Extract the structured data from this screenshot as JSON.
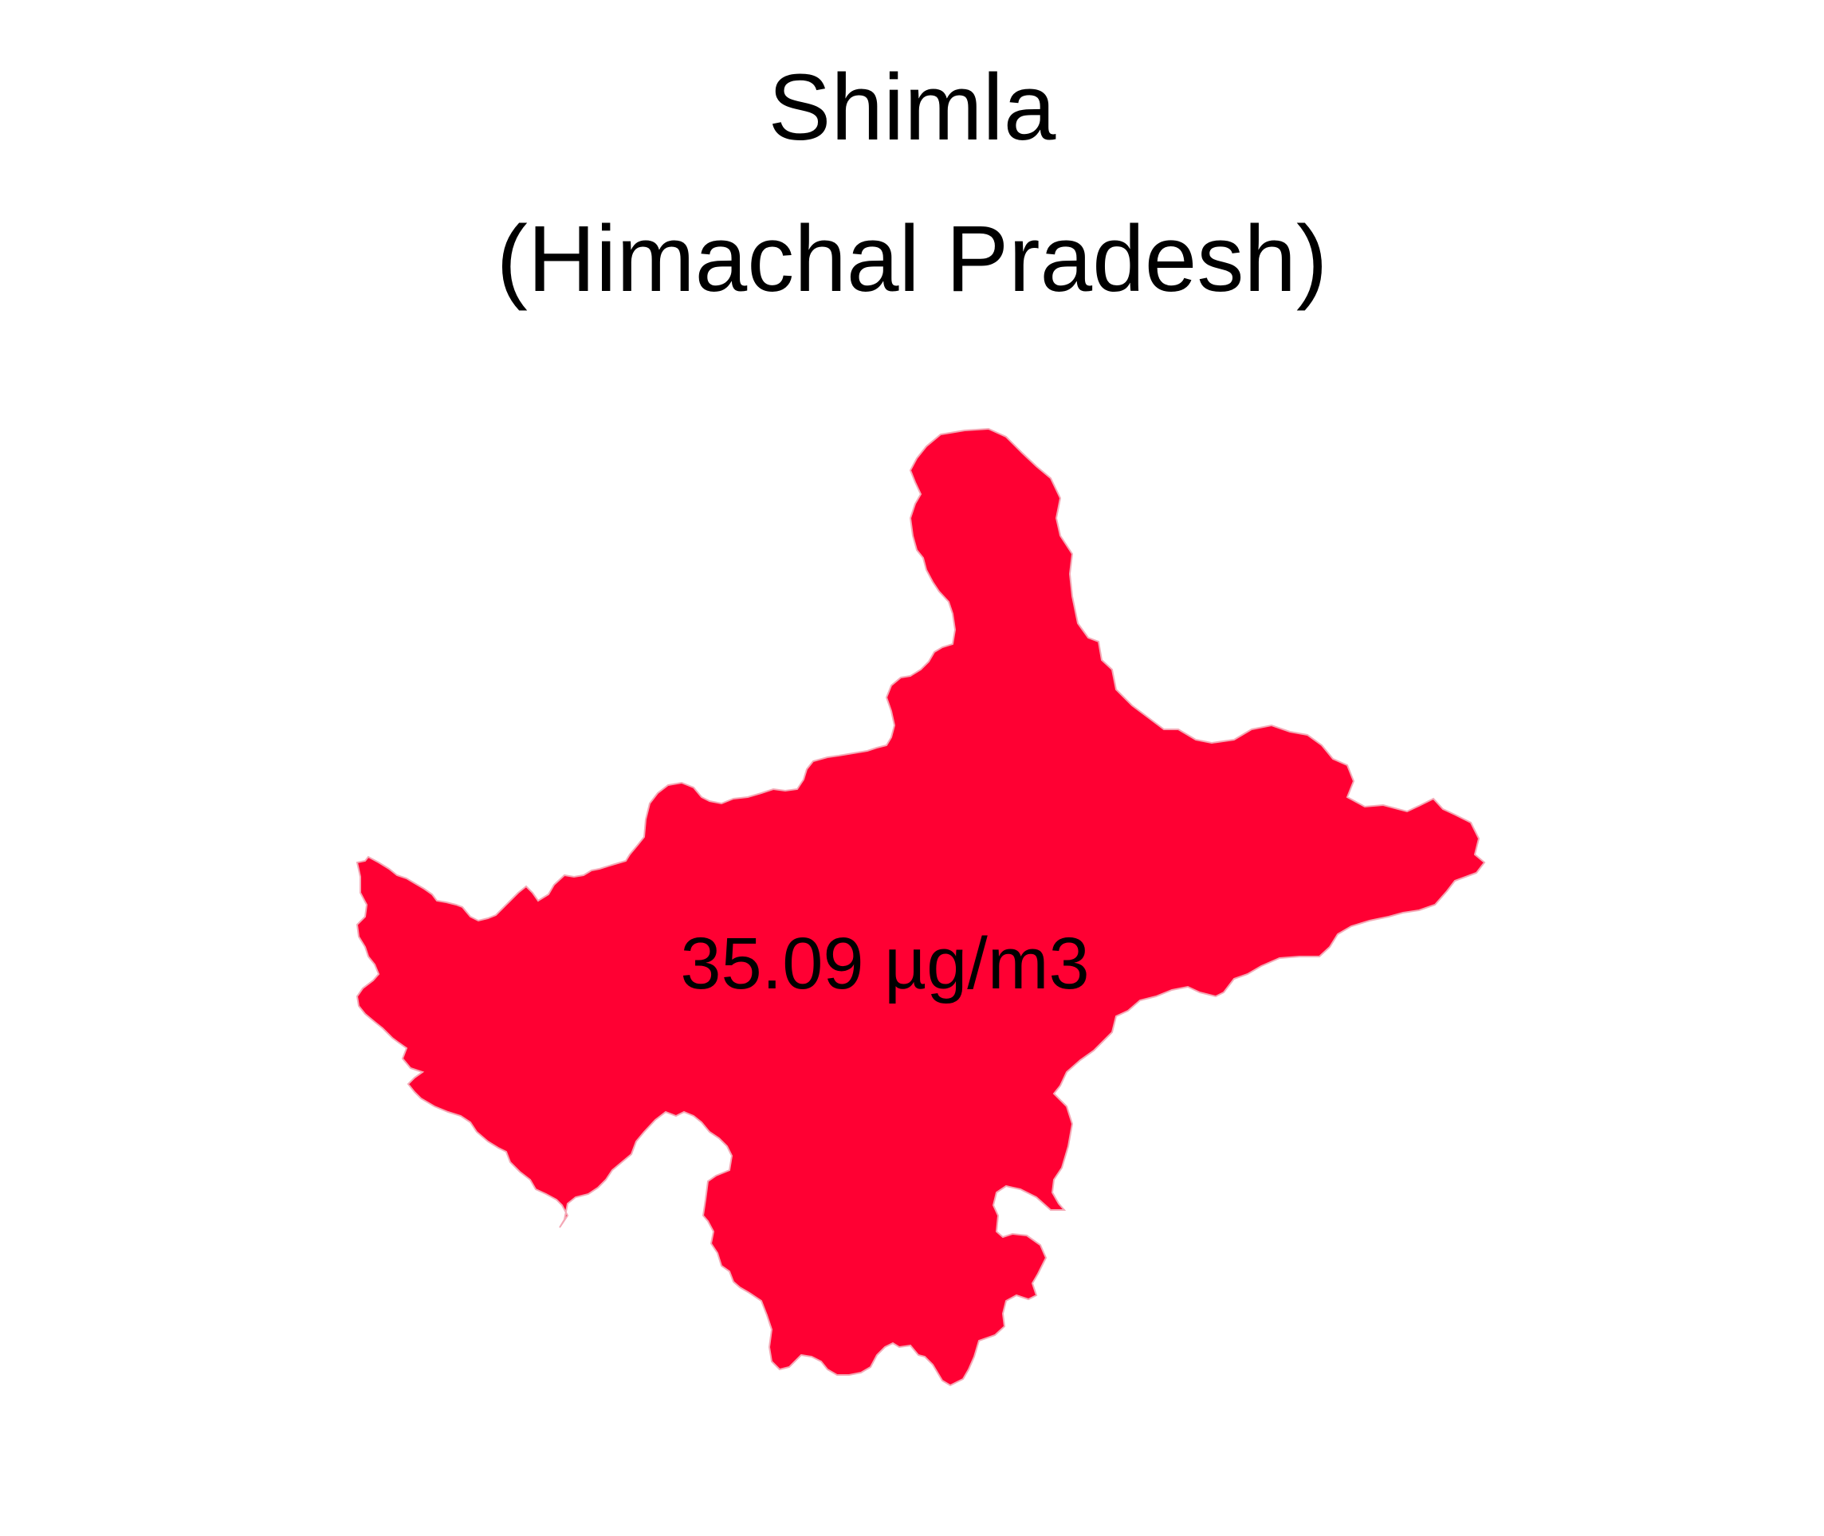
{
  "map": {
    "title_line1": "Shimla",
    "title_line2": "(Himachal Pradesh)",
    "region": {
      "name": "Shimla",
      "state": "Himachal Pradesh",
      "value": 35.09,
      "unit": "µg/m3",
      "label": "35.09 µg/m3",
      "fill_color": "#ff0033",
      "outline_color": "#f4a9b6"
    },
    "background_color": "#ffffff",
    "text_color": "#000000"
  }
}
